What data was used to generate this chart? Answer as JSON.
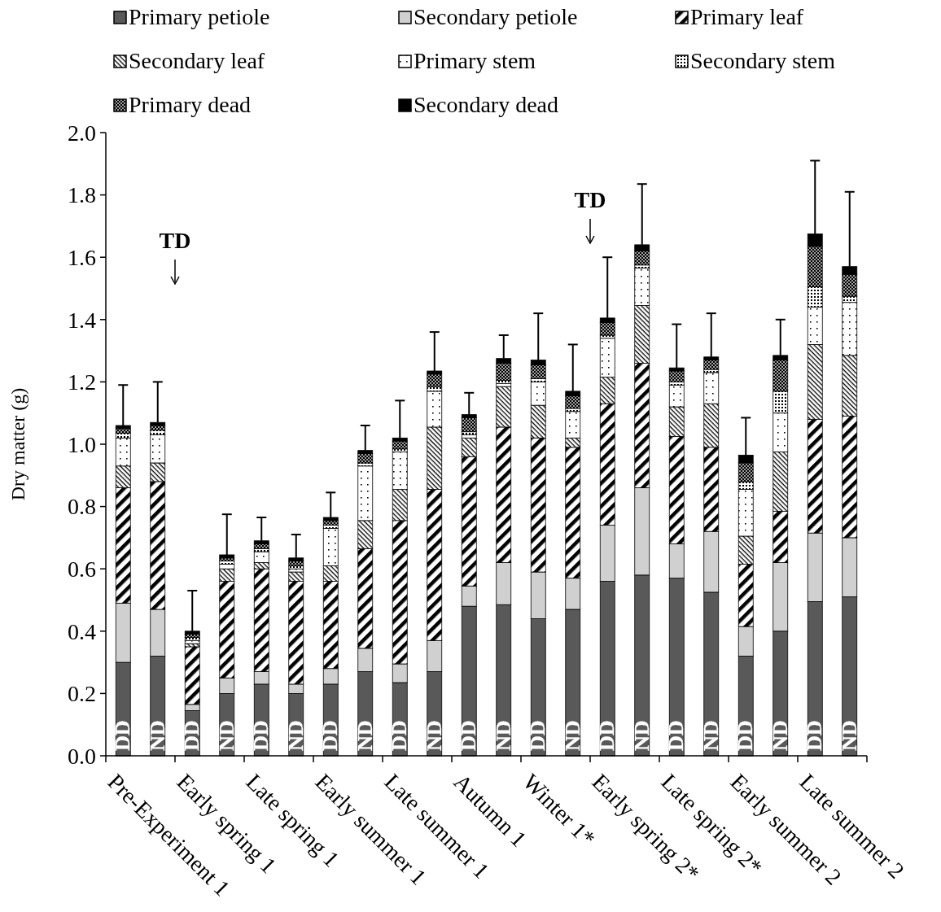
{
  "chart_data": {
    "type": "bar",
    "stacked": true,
    "ylabel": "Dry matter (g)",
    "categories": [
      "DD",
      "ND",
      "DD",
      "ND",
      "DD",
      "ND",
      "DD",
      "ND",
      "DD",
      "ND",
      "DD",
      "ND",
      "DD",
      "ND",
      "DD",
      "ND",
      "DD",
      "ND",
      "DD",
      "ND",
      "DD",
      "ND"
    ],
    "ylim": [
      0,
      2
    ],
    "yticks": [
      {
        "value": 0,
        "label": "0.0"
      },
      0.2,
      0.4,
      0.6,
      0.8,
      {
        "value": 1,
        "label": "1.0"
      },
      1.2,
      1.4,
      1.6,
      1.8,
      {
        "value": 2,
        "label": "2.0"
      }
    ],
    "legend": "top",
    "grid": false,
    "annotations": [
      "Pre-Experiment 1",
      "Early spring 1",
      "Late spring 1",
      "Early summer 1",
      "Late summer 1",
      "Autumn 1",
      "Winter 1*",
      "Early spring 2*",
      "Late spring 2*",
      "Early summer 2",
      "Late summer 2",
      "TD",
      "TD"
    ],
    "series": [
      {
        "name": "Primary petiole",
        "color": "#595959",
        "values": [
          0.3,
          0.32,
          0.145,
          0.2,
          0.23,
          0.2,
          0.23,
          0.27,
          0.235,
          0.27,
          0.48,
          0.485,
          0.44,
          0.47,
          0.56,
          0.58,
          0.57,
          0.525,
          0.32,
          0.4,
          0.495,
          0.51
        ]
      },
      {
        "name": "Secondary petiole",
        "color": "#d0d0d0",
        "values": [
          0.19,
          0.15,
          0.02,
          0.05,
          0.04,
          0.03,
          0.05,
          0.075,
          0.06,
          0.1,
          0.065,
          0.135,
          0.15,
          0.1,
          0.18,
          0.28,
          0.11,
          0.195,
          0.095,
          0.22,
          0.22,
          0.19
        ]
      },
      {
        "name": "Primary leaf",
        "color": "#000000",
        "values": [
          0.37,
          0.41,
          0.185,
          0.31,
          0.33,
          0.33,
          0.28,
          0.32,
          0.46,
          0.485,
          0.415,
          0.435,
          0.43,
          0.42,
          0.39,
          0.4,
          0.345,
          0.27,
          0.2,
          0.165,
          0.365,
          0.39
        ]
      },
      {
        "name": "Secondary leaf",
        "color": "#000000",
        "values": [
          0.07,
          0.06,
          0.01,
          0.04,
          0.02,
          0.03,
          0.05,
          0.09,
          0.1,
          0.2,
          0.06,
          0.13,
          0.105,
          0.03,
          0.085,
          0.185,
          0.095,
          0.14,
          0.09,
          0.19,
          0.24,
          0.195
        ]
      },
      {
        "name": "Primary stem",
        "color": "#000000",
        "values": [
          0.09,
          0.09,
          0.01,
          0.015,
          0.035,
          0.01,
          0.12,
          0.175,
          0.12,
          0.115,
          0.01,
          0.01,
          0.075,
          0.085,
          0.125,
          0.12,
          0.07,
          0.1,
          0.15,
          0.125,
          0.12,
          0.17
        ]
      },
      {
        "name": "Secondary stem",
        "color": "#000000",
        "values": [
          0.015,
          0.015,
          0.01,
          0.01,
          0.01,
          0.01,
          0.01,
          0.01,
          0.01,
          0.015,
          0.01,
          0.01,
          0.01,
          0.01,
          0.01,
          0.01,
          0.01,
          0.01,
          0.025,
          0.07,
          0.065,
          0.02
        ]
      },
      {
        "name": "Primary dead",
        "color": "#000000",
        "values": [
          0.015,
          0.015,
          0.01,
          0.01,
          0.015,
          0.015,
          0.015,
          0.03,
          0.025,
          0.04,
          0.045,
          0.055,
          0.045,
          0.04,
          0.04,
          0.045,
          0.035,
          0.03,
          0.06,
          0.1,
          0.13,
          0.07
        ]
      },
      {
        "name": "Secondary dead",
        "color": "#000000",
        "values": [
          0.01,
          0.01,
          0.01,
          0.01,
          0.01,
          0.01,
          0.01,
          0.01,
          0.01,
          0.01,
          0.01,
          0.015,
          0.015,
          0.015,
          0.015,
          0.02,
          0.01,
          0.01,
          0.025,
          0.015,
          0.04,
          0.025
        ],
        "errors": [
          [
            1.06,
            1.19
          ],
          [
            1.07,
            1.2
          ],
          [
            0.4,
            0.53
          ],
          [
            0.645,
            0.775
          ],
          [
            0.69,
            0.765
          ],
          [
            0.635,
            0.71
          ],
          [
            0.765,
            0.845
          ],
          [
            0.98,
            1.06
          ],
          [
            1.02,
            1.14
          ],
          [
            1.235,
            1.36
          ],
          [
            1.095,
            1.165
          ],
          [
            1.275,
            1.35
          ],
          [
            1.27,
            1.42
          ],
          [
            1.17,
            1.32
          ],
          [
            1.405,
            1.6
          ],
          [
            1.64,
            1.835
          ],
          [
            1.245,
            1.385
          ],
          [
            1.28,
            1.42
          ],
          [
            0.965,
            1.085
          ],
          [
            1.285,
            1.4
          ],
          [
            1.675,
            1.91
          ],
          [
            1.57,
            1.81
          ]
        ]
      }
    ]
  }
}
